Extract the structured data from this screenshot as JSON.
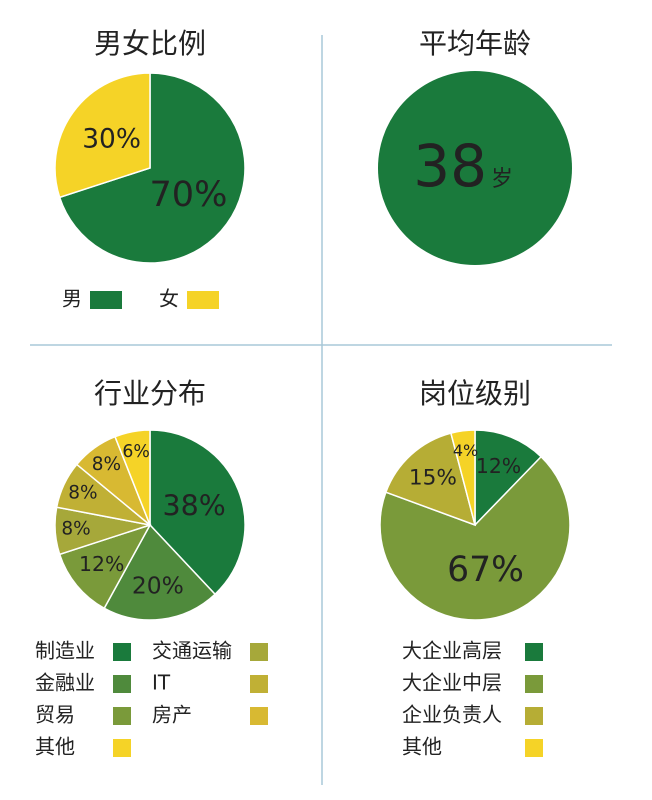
{
  "chart_data": [
    {
      "type": "pie",
      "title": "男女比例",
      "categories": [
        "男",
        "女"
      ],
      "values": [
        70,
        30
      ],
      "value_labels": [
        "70%",
        "30%"
      ],
      "colors": [
        "#1a7a3c",
        "#f5d327"
      ]
    },
    {
      "type": "stat",
      "title": "平均年龄",
      "value": 38,
      "unit": "岁",
      "color": "#1a7a3c"
    },
    {
      "type": "pie",
      "title": "行业分布",
      "categories": [
        "制造业",
        "金融业",
        "贸易",
        "交通运输",
        "IT",
        "房产",
        "其他"
      ],
      "values": [
        38,
        20,
        12,
        8,
        8,
        8,
        6
      ],
      "value_labels": [
        "38%",
        "20%",
        "12%",
        "8%",
        "8%",
        "8%",
        "6%"
      ],
      "colors": [
        "#1a7a3c",
        "#4f8a3c",
        "#7a9a3a",
        "#a6a83a",
        "#c0b035",
        "#d8b932",
        "#f5d327"
      ]
    },
    {
      "type": "pie",
      "title": "岗位级别",
      "categories": [
        "大企业高层",
        "大企业中层",
        "企业负责人",
        "其他"
      ],
      "values": [
        12,
        67,
        15,
        4
      ],
      "value_labels": [
        "12%",
        "67%",
        "15%",
        "4%"
      ],
      "colors": [
        "#1a7a3c",
        "#7a9a3a",
        "#b6ad35",
        "#f5d327"
      ]
    }
  ]
}
